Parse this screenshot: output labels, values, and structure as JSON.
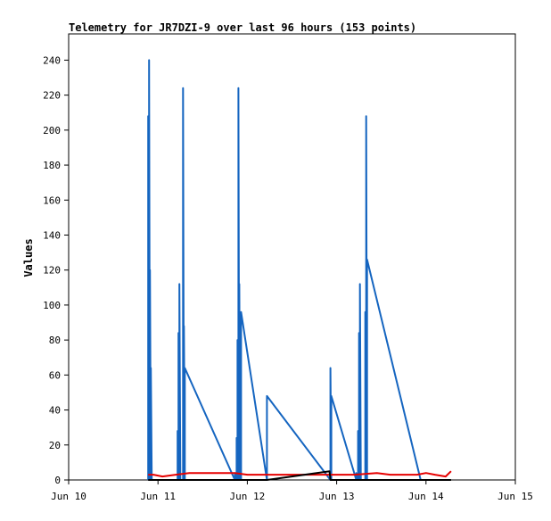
{
  "chart_data": {
    "type": "line",
    "title": "Telemetry for JR7DZI-9 over last 96 hours (153 points)",
    "xlabel": "",
    "ylabel": "Values",
    "xlim": [
      0,
      5
    ],
    "ylim": [
      0,
      255
    ],
    "x_ticks": [
      {
        "value": 0,
        "label": "Jun 10"
      },
      {
        "value": 1,
        "label": "Jun 11"
      },
      {
        "value": 2,
        "label": "Jun 12"
      },
      {
        "value": 3,
        "label": "Jun 13"
      },
      {
        "value": 4,
        "label": "Jun 14"
      },
      {
        "value": 5,
        "label": "Jun 15"
      }
    ],
    "y_ticks": [
      0,
      20,
      40,
      60,
      80,
      100,
      120,
      140,
      160,
      180,
      200,
      220,
      240
    ],
    "grid": false,
    "series": [
      {
        "color": "#1565c0",
        "points": [
          [
            0.89,
            0
          ],
          [
            0.89,
            208
          ],
          [
            0.9,
            0
          ],
          [
            0.9,
            240
          ],
          [
            0.91,
            0
          ],
          [
            0.91,
            120
          ],
          [
            0.92,
            0
          ],
          [
            0.92,
            64
          ],
          [
            0.93,
            0
          ],
          [
            1.22,
            0
          ],
          [
            1.22,
            28
          ],
          [
            1.23,
            0
          ],
          [
            1.23,
            84
          ],
          [
            1.24,
            0
          ],
          [
            1.24,
            112
          ],
          [
            1.25,
            0
          ],
          [
            1.28,
            0
          ],
          [
            1.28,
            224
          ],
          [
            1.29,
            0
          ],
          [
            1.29,
            88
          ],
          [
            1.3,
            0
          ],
          [
            1.3,
            64
          ],
          [
            1.86,
            0
          ],
          [
            1.86,
            4
          ],
          [
            1.88,
            0
          ],
          [
            1.88,
            24
          ],
          [
            1.89,
            0
          ],
          [
            1.89,
            80
          ],
          [
            1.9,
            0
          ],
          [
            1.9,
            224
          ],
          [
            1.91,
            0
          ],
          [
            1.91,
            112
          ],
          [
            1.92,
            0
          ],
          [
            1.92,
            80
          ],
          [
            1.93,
            0
          ],
          [
            1.93,
            96
          ],
          [
            2.22,
            0
          ],
          [
            2.22,
            48
          ],
          [
            2.93,
            0
          ],
          [
            2.93,
            64
          ],
          [
            2.94,
            0
          ],
          [
            2.94,
            48
          ],
          [
            3.22,
            0
          ],
          [
            3.22,
            4
          ],
          [
            3.24,
            0
          ],
          [
            3.24,
            28
          ],
          [
            3.25,
            0
          ],
          [
            3.25,
            84
          ],
          [
            3.26,
            0
          ],
          [
            3.26,
            112
          ],
          [
            3.27,
            0
          ],
          [
            3.32,
            0
          ],
          [
            3.32,
            96
          ],
          [
            3.33,
            0
          ],
          [
            3.33,
            208
          ],
          [
            3.34,
            0
          ],
          [
            3.34,
            126
          ],
          [
            3.94,
            0
          ]
        ]
      },
      {
        "color": "#e60000",
        "points": [
          [
            0.89,
            3
          ],
          [
            0.95,
            3
          ],
          [
            1.05,
            2
          ],
          [
            1.2,
            3
          ],
          [
            1.35,
            4
          ],
          [
            1.6,
            4
          ],
          [
            1.86,
            4
          ],
          [
            2.0,
            3
          ],
          [
            2.4,
            3
          ],
          [
            2.93,
            3
          ],
          [
            3.2,
            3
          ],
          [
            3.45,
            4
          ],
          [
            3.6,
            3
          ],
          [
            3.9,
            3
          ],
          [
            4.0,
            4
          ],
          [
            4.1,
            3
          ],
          [
            4.22,
            2
          ],
          [
            4.28,
            5
          ]
        ]
      },
      {
        "color": "#000000",
        "points": [
          [
            0.89,
            0
          ],
          [
            2.22,
            0
          ],
          [
            2.92,
            5
          ],
          [
            2.93,
            0
          ],
          [
            3.95,
            0
          ],
          [
            4.28,
            0
          ]
        ]
      }
    ]
  }
}
